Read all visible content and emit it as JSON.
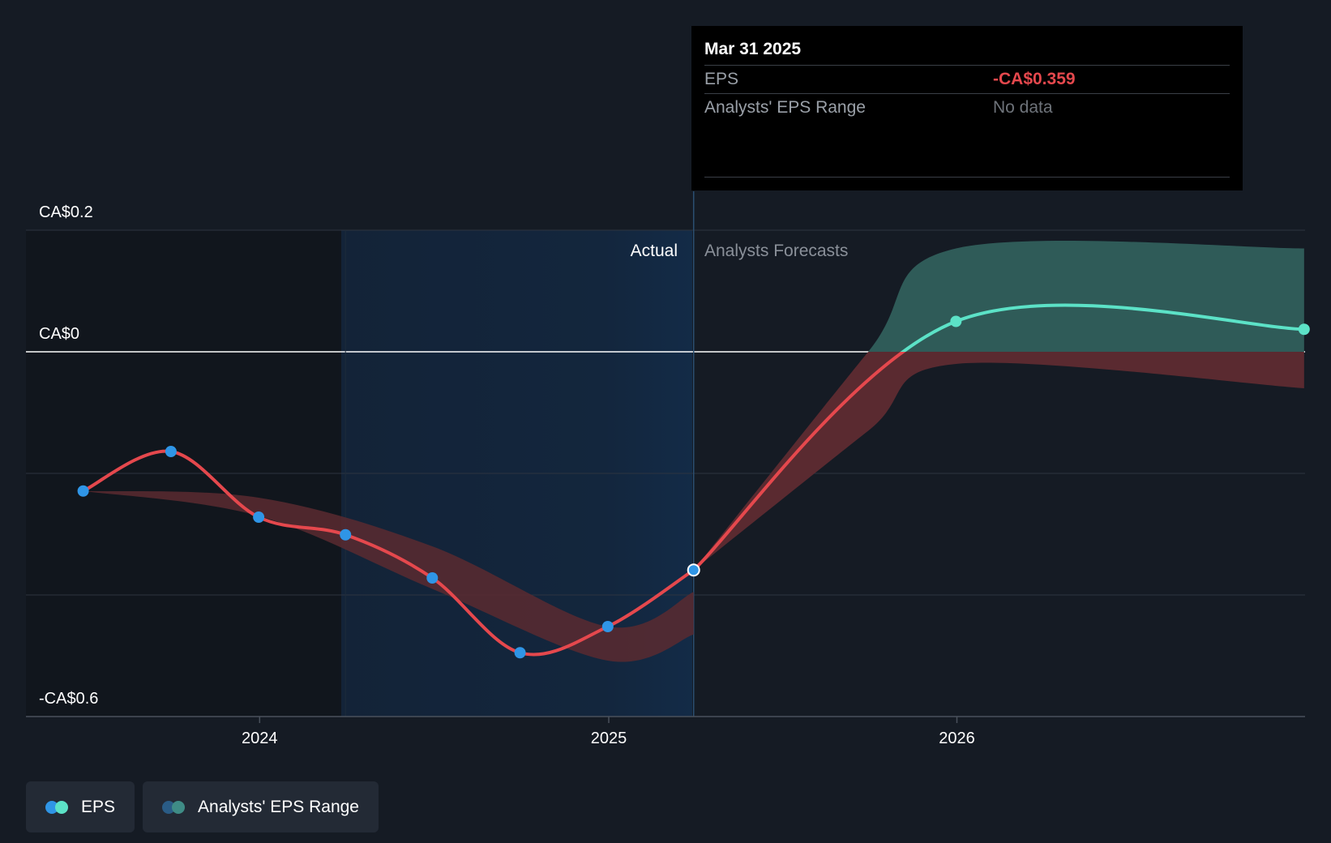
{
  "chart_data": {
    "type": "line",
    "ylim": [
      -0.6,
      0.2
    ],
    "y_ticks": [
      {
        "value": 0.2,
        "label": "CA$0.2"
      },
      {
        "value": 0,
        "label": "CA$0"
      },
      {
        "value": -0.6,
        "label": "-CA$0.6"
      }
    ],
    "y_gridlines": [
      0.2,
      0,
      -0.2,
      -0.4,
      -0.6
    ],
    "x_ticks": [
      {
        "value": "2024-01-01",
        "label": "2024"
      },
      {
        "value": "2025-01-01",
        "label": "2025"
      },
      {
        "value": "2026-01-01",
        "label": "2026"
      }
    ],
    "x_range": [
      "2023-05-01",
      "2027-01-01"
    ],
    "divider_date": "2025-03-31",
    "highlight_start": "2024-03-31",
    "region_labels": {
      "actual": "Actual",
      "forecast": "Analysts Forecasts"
    },
    "series": [
      {
        "name": "EPS",
        "kind": "actual",
        "color": "#e5484d",
        "marker_color": "#2f95e6",
        "points": [
          {
            "x": "2023-06-30",
            "y": -0.229
          },
          {
            "x": "2023-09-30",
            "y": -0.164
          },
          {
            "x": "2023-12-31",
            "y": -0.272
          },
          {
            "x": "2024-03-31",
            "y": -0.301
          },
          {
            "x": "2024-06-30",
            "y": -0.372
          },
          {
            "x": "2024-09-30",
            "y": -0.495
          },
          {
            "x": "2024-12-31",
            "y": -0.452
          },
          {
            "x": "2025-03-31",
            "y": -0.359
          }
        ]
      },
      {
        "name": "EPS forecast",
        "kind": "forecast",
        "color_negative": "#e5484d",
        "color_positive": "#5ce2c7",
        "points": [
          {
            "x": "2025-03-31",
            "y": -0.359
          },
          {
            "x": "2025-12-31",
            "y": 0.05
          },
          {
            "x": "2026-12-31",
            "y": 0.037
          }
        ]
      }
    ],
    "forecast_range": {
      "name": "Analysts' EPS Range",
      "color_positive": "#2f5b58",
      "color_negative": "#5a2a30",
      "points": [
        {
          "x": "2025-03-31",
          "low": -0.359,
          "high": -0.359
        },
        {
          "x": "2025-09-30",
          "low": -0.13,
          "high": 0.0
        },
        {
          "x": "2025-12-31",
          "low": -0.02,
          "high": 0.17
        },
        {
          "x": "2026-12-31",
          "low": -0.06,
          "high": 0.17
        }
      ]
    },
    "historical_band": {
      "color": "#5a2a30",
      "points": [
        {
          "x": "2023-06-30",
          "low": -0.229,
          "high": -0.229
        },
        {
          "x": "2023-12-31",
          "low": -0.27,
          "high": -0.24
        },
        {
          "x": "2024-06-30",
          "low": -0.39,
          "high": -0.32
        },
        {
          "x": "2024-12-31",
          "low": -0.508,
          "high": -0.452
        },
        {
          "x": "2025-03-31",
          "low": -0.465,
          "high": -0.395
        }
      ]
    }
  },
  "tooltip": {
    "date": "Mar 31 2025",
    "rows": [
      {
        "label": "EPS",
        "value": "-CA$0.359"
      },
      {
        "label": "Analysts' EPS Range",
        "value": "No data"
      }
    ]
  },
  "legend": [
    {
      "label": "EPS",
      "colors": [
        "#2f95e6",
        "#5ce2c7"
      ]
    },
    {
      "label": "Analysts' EPS Range",
      "colors": [
        "#2a5c86",
        "#3f8c86"
      ]
    }
  ]
}
